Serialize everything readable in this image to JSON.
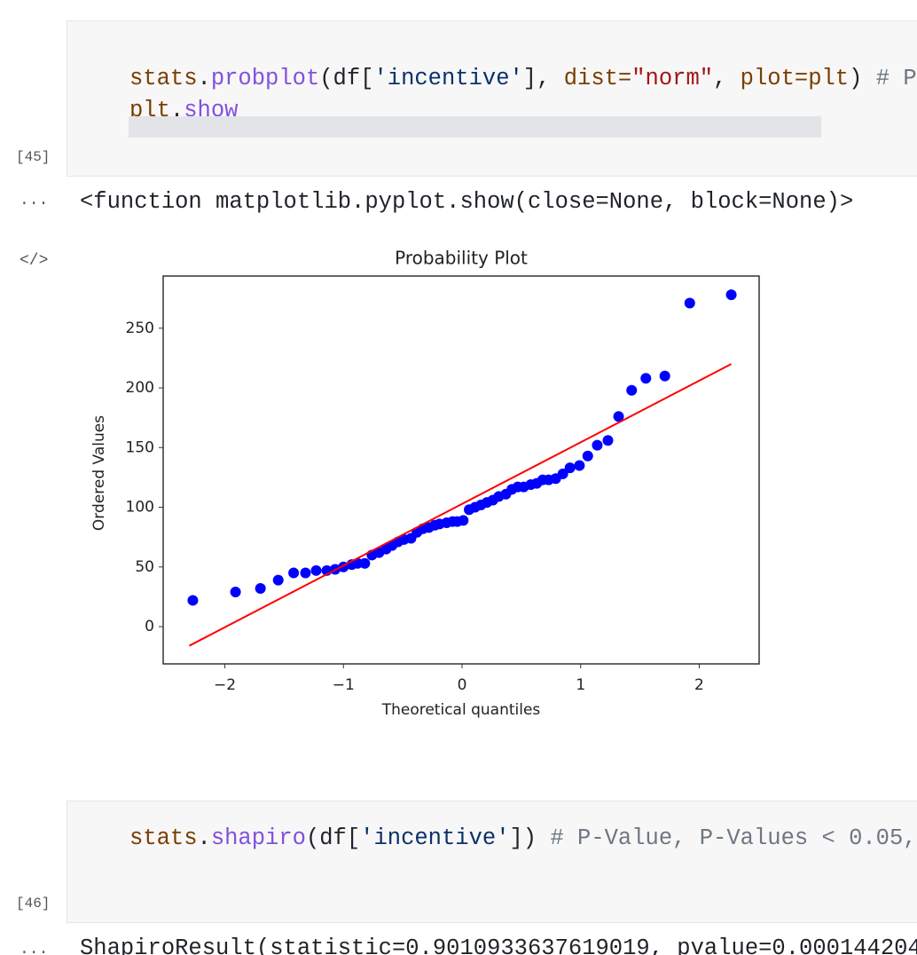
{
  "cells": [
    {
      "prompt": "[45]",
      "code": [
        [
          "stats",
          ".",
          "probplot",
          "(df[",
          "'incentive'",
          "], ",
          "dist=",
          "\"norm\"",
          ", ",
          "plot=",
          "plt",
          ") ",
          "# P"
        ],
        [
          "plt",
          ".",
          "show"
        ]
      ],
      "output_marker": "...",
      "output_text": "<function matplotlib.pyplot.show(close=None, block=None)>",
      "output_icon": "</>"
    },
    {
      "prompt": "[46]",
      "code": [
        [
          "stats",
          ".",
          "shapiro",
          "(df[",
          "'incentive'",
          "]) ",
          "# P-Value, P-Values < 0.05,"
        ]
      ],
      "output_marker": "...",
      "output_text": "ShapiroResult(statistic=0.9010933637619019, pvalue=0.000144204"
    }
  ],
  "chart_data": {
    "type": "scatter",
    "title": "Probability Plot",
    "x_label": "Theoretical quantiles",
    "y_label": "Ordered Values",
    "xlim": [
      -2.52,
      2.505
    ],
    "ylim": [
      -31.2,
      293.7
    ],
    "xticks": [
      {
        "value": -2,
        "label": "−2"
      },
      {
        "value": -1,
        "label": "−1"
      },
      0,
      1,
      2
    ],
    "yticks": [
      0,
      50,
      100,
      150,
      200,
      250
    ],
    "grid": false,
    "series": [
      {
        "color": "#0000ff",
        "mode": "markers",
        "x": [
          -2.27,
          -1.91,
          -1.7,
          -1.55,
          -1.42,
          -1.32,
          -1.23,
          -1.14,
          -1.07,
          -1.0,
          -0.93,
          -0.88,
          -0.82,
          -0.76,
          -0.7,
          -0.64,
          -0.59,
          -0.54,
          -0.49,
          -0.43,
          -0.38,
          -0.33,
          -0.28,
          -0.23,
          -0.19,
          -0.13,
          -0.08,
          -0.04,
          0.01,
          0.06,
          0.11,
          0.16,
          0.21,
          0.26,
          0.31,
          0.37,
          0.42,
          0.47,
          0.52,
          0.58,
          0.63,
          0.68,
          0.73,
          0.79,
          0.85,
          0.91,
          0.99,
          1.06,
          1.14,
          1.23,
          1.32,
          1.43,
          1.55,
          1.71,
          1.92,
          2.27
        ],
        "values": [
          22,
          29,
          32,
          39,
          45,
          45,
          47,
          47,
          48,
          50,
          52,
          53,
          53,
          60,
          62,
          65,
          68,
          71,
          73,
          74,
          79,
          82,
          83,
          85,
          86,
          87,
          88,
          88,
          89,
          98,
          100,
          102,
          104,
          106,
          109,
          111,
          115,
          117,
          117,
          119,
          120,
          123,
          123,
          124,
          128,
          133,
          135,
          143,
          152,
          156,
          176,
          198,
          208,
          210,
          271,
          278
        ]
      },
      {
        "color": "#ff0000",
        "mode": "line",
        "x": [
          -2.3,
          2.27
        ],
        "values": [
          -16,
          220
        ]
      }
    ]
  }
}
